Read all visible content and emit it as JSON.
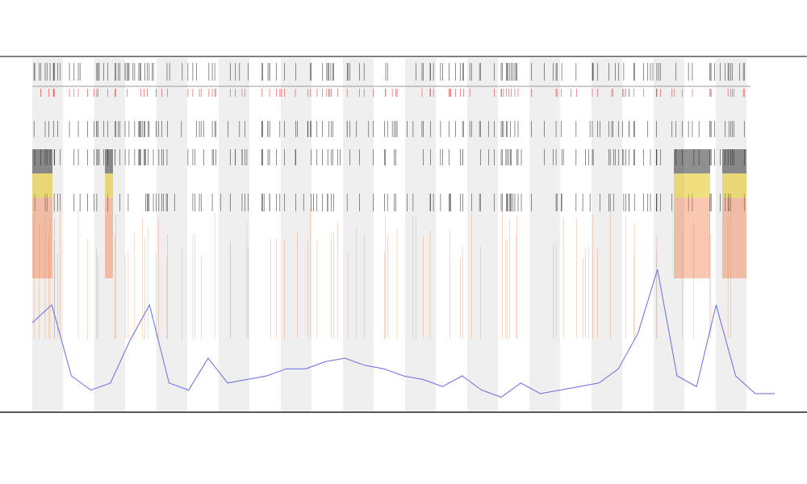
{
  "chart_data": {
    "type": "line",
    "categories": [
      null,
      null,
      null,
      null,
      null,
      null,
      null,
      null,
      null,
      null,
      null,
      null,
      null,
      null,
      null,
      null,
      null,
      null,
      null,
      null,
      null,
      null,
      null,
      null,
      null,
      null,
      null,
      null,
      null,
      null,
      null,
      null,
      null,
      null,
      null,
      null,
      null,
      null,
      null
    ],
    "series": [
      {
        "color": "#6a6ae8",
        "values": [
          25,
          30,
          10,
          6,
          8,
          20,
          30,
          8,
          6,
          15,
          8,
          9,
          10,
          12,
          12,
          14,
          15,
          13,
          12,
          10,
          9,
          7,
          10,
          6,
          4,
          8,
          5,
          6,
          7,
          8,
          12,
          22,
          40,
          10,
          7,
          30,
          10,
          5,
          5
        ]
      }
    ],
    "ylim": [
      0,
      100
    ]
  }
}
